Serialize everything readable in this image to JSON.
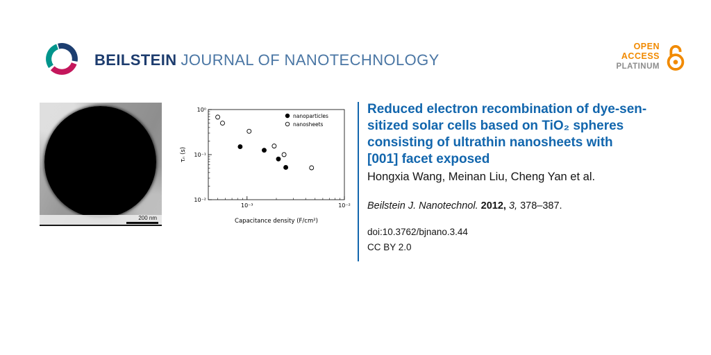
{
  "header": {
    "brand_bold": "BEILSTEIN",
    "brand_rest": "JOURNAL OF NANOTECHNOLOGY"
  },
  "badge": {
    "open": "OPEN",
    "access": "ACCESS",
    "platinum": "PLATINUM"
  },
  "figure": {
    "scale_label": "200 nm"
  },
  "chart_data": {
    "type": "scatter",
    "x_scale": "log",
    "y_scale": "log",
    "title": "",
    "xlabel": "Capacitance density (F/cm²)",
    "ylabel": "τₙ (s)",
    "xlim": [
      0.0004,
      0.01
    ],
    "ylim": [
      0.01,
      1
    ],
    "grid": false,
    "legend_position": "upper right",
    "xticks": [
      {
        "v": 0.001,
        "label": "10⁻³"
      },
      {
        "v": 0.01,
        "label": "10⁻²"
      }
    ],
    "yticks": [
      {
        "v": 1,
        "label": "10⁰"
      },
      {
        "v": 0.1,
        "label": "10⁻¹"
      },
      {
        "v": 0.01,
        "label": "10⁻²"
      }
    ],
    "series": [
      {
        "name": "nanoparticles",
        "marker": "filled",
        "points": [
          [
            0.00085,
            0.15
          ],
          [
            0.0015,
            0.125
          ],
          [
            0.0021,
            0.08
          ],
          [
            0.0025,
            0.052
          ]
        ]
      },
      {
        "name": "nanosheets",
        "marker": "open",
        "points": [
          [
            0.0005,
            0.68
          ],
          [
            0.00056,
            0.5
          ],
          [
            0.00105,
            0.33
          ],
          [
            0.0019,
            0.155
          ],
          [
            0.0024,
            0.1
          ],
          [
            0.0046,
            0.051
          ]
        ]
      }
    ]
  },
  "article": {
    "title_lines": [
      "Reduced electron recombination of dye-sen-",
      "sitized solar cells based on TiO₂ spheres",
      "consisting of ultrathin nanosheets with",
      "[001] facet exposed"
    ],
    "authors": "Hongxia Wang, Meinan Liu, Cheng Yan et al.",
    "citation": {
      "journal": "Beilstein J. Nanotechnol.",
      "year": "2012,",
      "volume": "3,",
      "pages": "378–387."
    },
    "doi": "doi:10.3762/bjnano.3.44",
    "license": "CC BY 2.0"
  },
  "colors": {
    "title_blue": "#1266ad",
    "brand_navy": "#1d3c6e",
    "brand_steel": "#4a76a4",
    "oa_orange": "#f18a00",
    "platinum_gray": "#8c8c8c"
  }
}
